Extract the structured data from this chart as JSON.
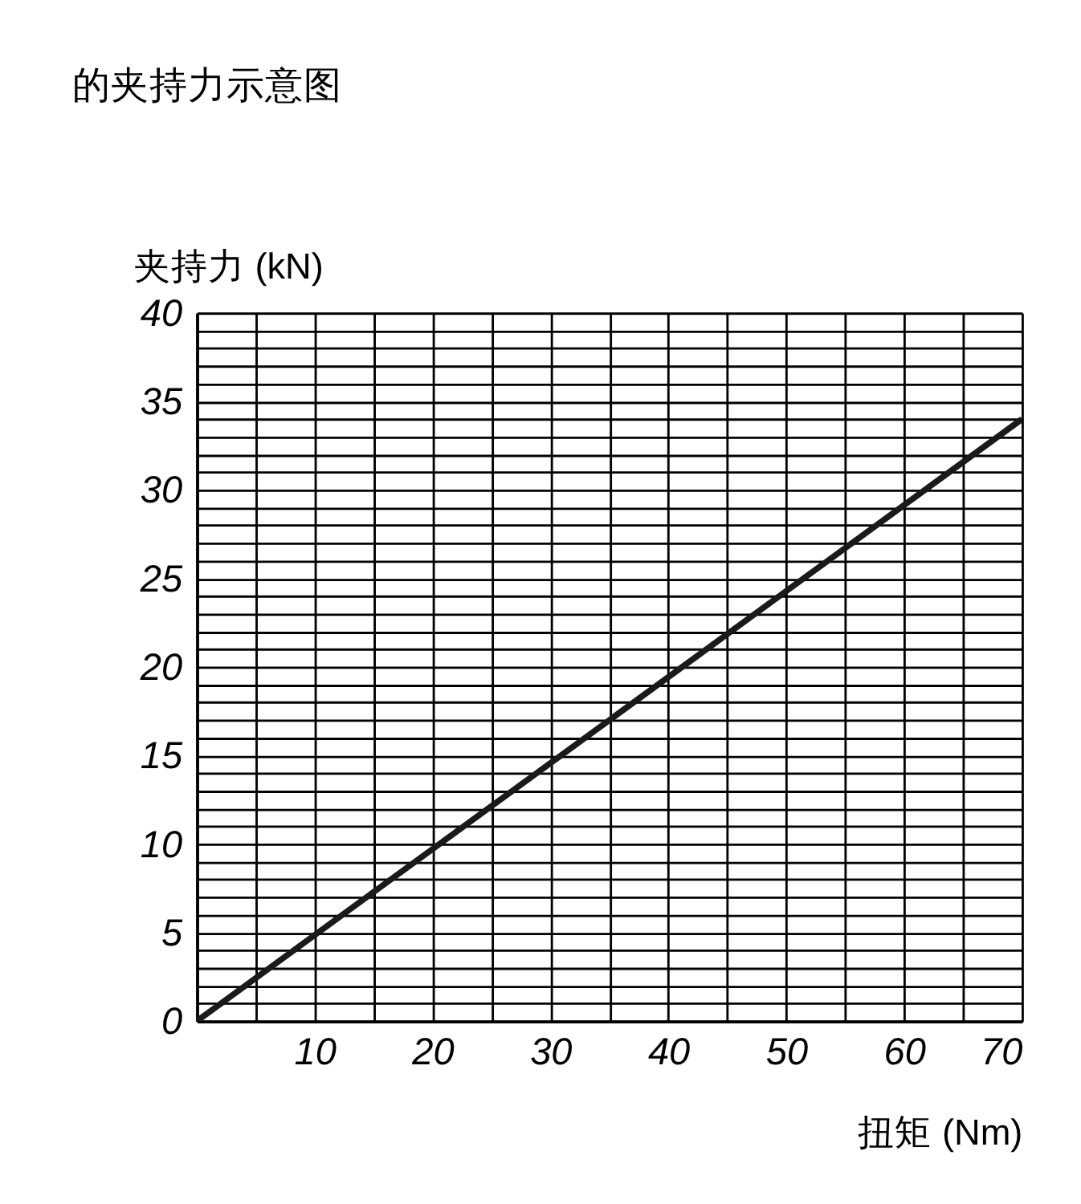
{
  "chart_data": {
    "type": "line",
    "title": "的夹持力示意图",
    "xlabel": "扭矩 (Nm)",
    "ylabel": "夹持力 (kN)",
    "x": [
      0,
      70
    ],
    "series": [
      {
        "color": "#1a1a1a",
        "values": [
          0,
          34
        ]
      }
    ],
    "xlim": [
      0,
      70
    ],
    "ylim": [
      0,
      40
    ],
    "xticks": [
      {
        "value": 0,
        "label": null
      },
      {
        "value": 5,
        "label": null
      },
      10,
      {
        "value": 15,
        "label": null
      },
      20,
      {
        "value": 25,
        "label": null
      },
      30,
      {
        "value": 35,
        "label": null
      },
      40,
      {
        "value": 45,
        "label": null
      },
      50,
      {
        "value": 55,
        "label": null
      },
      60,
      {
        "value": 65,
        "label": null
      },
      70
    ],
    "yticks": [
      0,
      {
        "value": 1,
        "label": null
      },
      {
        "value": 2,
        "label": null
      },
      {
        "value": 3,
        "label": null
      },
      {
        "value": 4,
        "label": null
      },
      5,
      {
        "value": 6,
        "label": null
      },
      {
        "value": 7,
        "label": null
      },
      {
        "value": 8,
        "label": null
      },
      {
        "value": 9,
        "label": null
      },
      10,
      {
        "value": 11,
        "label": null
      },
      {
        "value": 12,
        "label": null
      },
      {
        "value": 13,
        "label": null
      },
      {
        "value": 14,
        "label": null
      },
      15,
      {
        "value": 16,
        "label": null
      },
      {
        "value": 17,
        "label": null
      },
      {
        "value": 18,
        "label": null
      },
      {
        "value": 19,
        "label": null
      },
      20,
      {
        "value": 21,
        "label": null
      },
      {
        "value": 22,
        "label": null
      },
      {
        "value": 23,
        "label": null
      },
      {
        "value": 24,
        "label": null
      },
      25,
      {
        "value": 26,
        "label": null
      },
      {
        "value": 27,
        "label": null
      },
      {
        "value": 28,
        "label": null
      },
      {
        "value": 29,
        "label": null
      },
      30,
      {
        "value": 31,
        "label": null
      },
      {
        "value": 32,
        "label": null
      },
      {
        "value": 33,
        "label": null
      },
      {
        "value": 34,
        "label": null
      },
      35,
      {
        "value": 36,
        "label": null
      },
      {
        "value": 37,
        "label": null
      },
      {
        "value": 38,
        "label": null
      },
      {
        "value": 39,
        "label": null
      },
      40
    ],
    "grid": true,
    "line_style": "solid",
    "marker": "none"
  }
}
